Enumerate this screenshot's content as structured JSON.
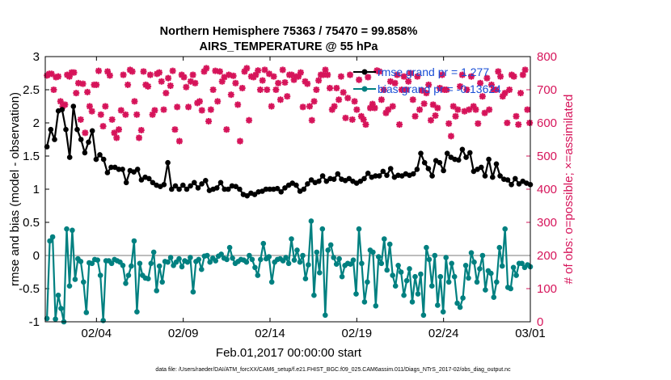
{
  "chart_data": {
    "type": "line",
    "title": "Northern Hemisphere 75363 / 75470 = 99.858%",
    "subtitle": "AIRS_TEMPERATURE @ 55 hPa",
    "xlabel": "Feb.01,2017 00:00:00 start",
    "ylabel_left": "rmse and bias (model - observation)",
    "ylabel_right": "# of obs: o=possible; ×=assimilated",
    "footnote": "data file: /Users/raeder/DAI/ATM_forcXX/CAM6_setup/f.e21.FHIST_BGC.f09_025.CAM6assim.011/Diags_NTrS_2017-02/obs_diag_output.nc",
    "x_tick_labels": [
      "02/04",
      "02/09",
      "02/14",
      "02/19",
      "02/24",
      "03/01"
    ],
    "x_tick_days": [
      3,
      8,
      13,
      18,
      23,
      28
    ],
    "xlim": [
      0.05,
      28
    ],
    "ylim_left": [
      -1,
      3
    ],
    "y_ticks_left": [
      "-1",
      "-0.5",
      "0",
      "0.5",
      "1",
      "1.5",
      "2",
      "2.5",
      "3"
    ],
    "ylim_right": [
      0,
      800
    ],
    "y_ticks_right": [
      "0",
      "100",
      "200",
      "300",
      "400",
      "500",
      "600",
      "700",
      "800"
    ],
    "colors": {
      "rmse": "#000000",
      "bias": "#008080",
      "obs": "#d6145a",
      "zero_line": "#bdbdbd",
      "legend_text": "#1a4fd6"
    },
    "series": [
      {
        "name": "rmse grand pr = 1.277",
        "axis": "left",
        "values": [
          1.64,
          1.9,
          1.75,
          2.18,
          2.2,
          1.9,
          1.48,
          2.25,
          1.9,
          1.75,
          1.55,
          1.71,
          1.88,
          1.45,
          1.52,
          1.45,
          1.25,
          1.33,
          1.33,
          1.3,
          1.3,
          1.1,
          1.28,
          1.26,
          1.3,
          1.14,
          1.18,
          1.16,
          1.1,
          1.06,
          1.04,
          1.07,
          1.4,
          1.0,
          1.05,
          1.0,
          1.06,
          1.0,
          1.05,
          1.1,
          1.02,
          1.08,
          1.13,
          0.98,
          1.0,
          1.02,
          1.1,
          1.0,
          1.0,
          1.05,
          1.04,
          1.0,
          0.92,
          0.9,
          0.94,
          0.92,
          0.96,
          0.97,
          1.0,
          1.0,
          1.0,
          1.01,
          0.96,
          1.02,
          1.06,
          1.09,
          1.06,
          0.97,
          1.0,
          1.08,
          1.14,
          1.1,
          1.12,
          1.2,
          1.12,
          1.16,
          1.15,
          1.23,
          1.15,
          1.13,
          1.16,
          1.12,
          1.09,
          1.12,
          1.16,
          1.24,
          1.18,
          1.2,
          1.2,
          1.27,
          1.21,
          1.31,
          1.18,
          1.21,
          1.2,
          1.23,
          1.21,
          1.23,
          1.3,
          1.54,
          1.4,
          1.31,
          1.2,
          1.43,
          1.4,
          1.28,
          1.54,
          1.48,
          1.45,
          1.44,
          1.6,
          1.48,
          1.55,
          1.27,
          1.3,
          1.33,
          1.2,
          1.45,
          1.18,
          1.38,
          1.2,
          1.15,
          1.14,
          1.07,
          1.16,
          1.08,
          1.12,
          1.09,
          1.07
        ]
      },
      {
        "name": "bias grand pr = -0.13624",
        "axis": "left",
        "values": [
          -0.95,
          0.22,
          0.28,
          -0.96,
          -0.6,
          -0.8,
          -1.0,
          0.4,
          -0.46,
          0.38,
          -0.36,
          -0.05,
          -0.09,
          -0.4,
          -0.86,
          -0.11,
          -0.12,
          -0.06,
          -0.07,
          -0.3,
          -0.98,
          -0.08,
          -0.08,
          -0.12,
          -0.06,
          -0.08,
          -0.1,
          -0.15,
          -0.42,
          -0.3,
          -0.16,
          0.22,
          -0.85,
          -0.12,
          -0.3,
          -0.34,
          -0.35,
          -0.12,
          0.05,
          -0.53,
          -0.16,
          -0.4,
          -0.09,
          -0.1,
          -0.03,
          -0.15,
          -0.1,
          -0.05,
          -0.17,
          -0.08,
          -0.1,
          -0.03,
          -0.55,
          -0.09,
          -0.06,
          -0.21,
          -0.01,
          0.0,
          -0.1,
          -0.04,
          -0.08,
          -0.01,
          0.02,
          -0.04,
          -0.06,
          0.12,
          -0.04,
          -0.12,
          -0.09,
          -0.06,
          -0.07,
          -0.1,
          0.0,
          -0.06,
          -0.18,
          -0.3,
          -0.06,
          0.18,
          -0.05,
          -0.02,
          -0.4,
          -0.1,
          -0.06,
          -0.05,
          -0.08,
          -0.03,
          -0.12,
          0.25,
          -0.07,
          0.08,
          -0.1,
          0.0,
          -0.35,
          -0.14,
          0.52,
          -0.6,
          0.05,
          -0.26,
          0.4,
          -0.9,
          0.08,
          0.16,
          -0.03,
          -0.13,
          -0.05,
          -0.32,
          -0.15,
          -0.12,
          -0.13,
          -0.07,
          -0.58,
          0.4,
          -0.12,
          -0.7,
          -0.4,
          0.08,
          0.05,
          -0.76,
          -0.02,
          -0.12,
          0.25,
          -0.22,
          0.17,
          -0.3,
          -0.46,
          -0.15,
          -0.25,
          -0.6,
          -0.38,
          -0.2,
          -0.7,
          -0.32,
          -0.58,
          -0.28,
          -0.9,
          0.12,
          -0.06,
          -0.46,
          0.0,
          -0.75,
          -0.32,
          -0.85,
          -0.03,
          -0.4,
          -0.12,
          -0.32,
          -0.72,
          -0.78,
          -0.64,
          -0.15,
          -0.34,
          0.04,
          -0.1,
          -0.4,
          -0.2,
          0.0,
          -0.52,
          -0.23,
          -0.27,
          -0.63,
          -0.4,
          0.12,
          -0.16,
          0.4,
          -0.48,
          -0.5,
          -0.18,
          -0.3,
          -0.12,
          -0.12,
          -0.18,
          -0.14,
          -0.17
        ]
      },
      {
        "name": "# obs assimilated",
        "axis": "right",
        "values": [
          743,
          748,
          748,
          700,
          738,
          740,
          665,
          650,
          655,
          745,
          740,
          752,
          752,
          690,
          720,
          610,
          718,
          570,
          693,
          650,
          635,
          715,
          715,
          757,
          625,
          590,
          650,
          755,
          743,
          610,
          570,
          555,
          580,
          638,
          745,
          625,
          715,
          760,
          755,
          665,
          625,
          555,
          578,
          755,
          715,
          710,
          745,
          625,
          638,
          748,
          752,
          725,
          640,
          690,
          735,
          712,
          757,
          580,
          648,
          545,
          745,
          738,
          708,
          648,
          725,
          745,
          720,
          660,
          665,
          638,
          755,
          765,
          605,
          640,
          700,
          757,
          665,
          755,
          725,
          738,
          580,
          745,
          685,
          742,
          720,
          655,
          545,
          705,
          755,
          765,
          608,
          740,
          738,
          745,
          758,
          700,
          728,
          760,
          700,
          748,
          650,
          740,
          700,
          720,
          670,
          760,
          722,
          680,
          745,
          745,
          730,
          740,
          740,
          752,
          648,
          725,
          718,
          650,
          608,
          665,
          700,
          728,
          745,
          745,
          760,
          745,
          705,
          640,
          650,
          705,
          670,
          740,
          692,
          615,
          675,
          745,
          610,
          665,
          640,
          730,
          620,
          610,
          595,
          738,
          645,
          657,
          645,
          758,
          755,
          670,
          700,
          630,
          640,
          725,
          650,
          720,
          745,
          595,
          700,
          740,
          700,
          725,
          750,
          670,
          620,
          740,
          640,
          698,
          658,
          690,
          715,
          608,
          655,
          622,
          645,
          705,
          745,
          700,
          700,
          598,
          560,
          650,
          620,
          640,
          710,
          745,
          635,
          700,
          640,
          740,
          650,
          640,
          598,
          720,
          680,
          630,
          735,
          640,
          715,
          700,
          700,
          755,
          740,
          680,
          690,
          600,
          700,
          745,
          740,
          620,
          595,
          690,
          745,
          760,
          640,
          600
        ]
      }
    ],
    "legend": [
      {
        "label": "rmse grand pr = 1.277"
      },
      {
        "label": "bias grand pr = -0.13624"
      }
    ]
  }
}
